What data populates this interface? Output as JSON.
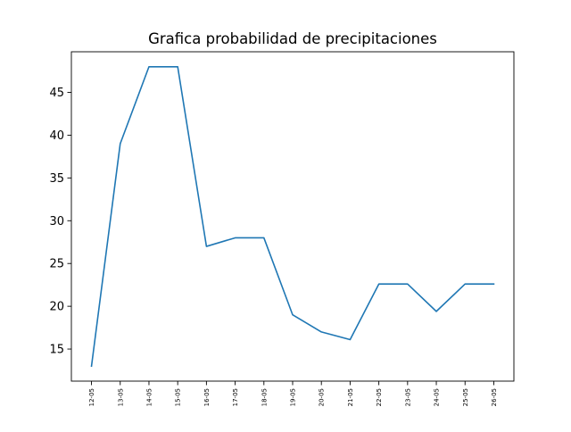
{
  "chart_data": {
    "type": "line",
    "title": "Grafica probabilidad de precipitaciones",
    "xlabel": "",
    "ylabel": "",
    "categories": [
      "12-05",
      "13-05",
      "14-05",
      "15-05",
      "16-05",
      "17-05",
      "18-05",
      "19-05",
      "20-05",
      "21-05",
      "22-05",
      "23-05",
      "24-05",
      "25-05",
      "26-05"
    ],
    "series": [
      {
        "values": [
          13,
          39,
          48,
          48,
          27,
          28,
          28,
          19,
          17,
          16.1,
          22.6,
          22.6,
          19.4,
          22.6,
          22.6
        ],
        "color": "#1f77b4"
      }
    ],
    "yticks": [
      15,
      20,
      25,
      30,
      35,
      40,
      45
    ],
    "ylim": [
      11.25,
      49.75
    ],
    "grid": false,
    "legend": "none"
  }
}
